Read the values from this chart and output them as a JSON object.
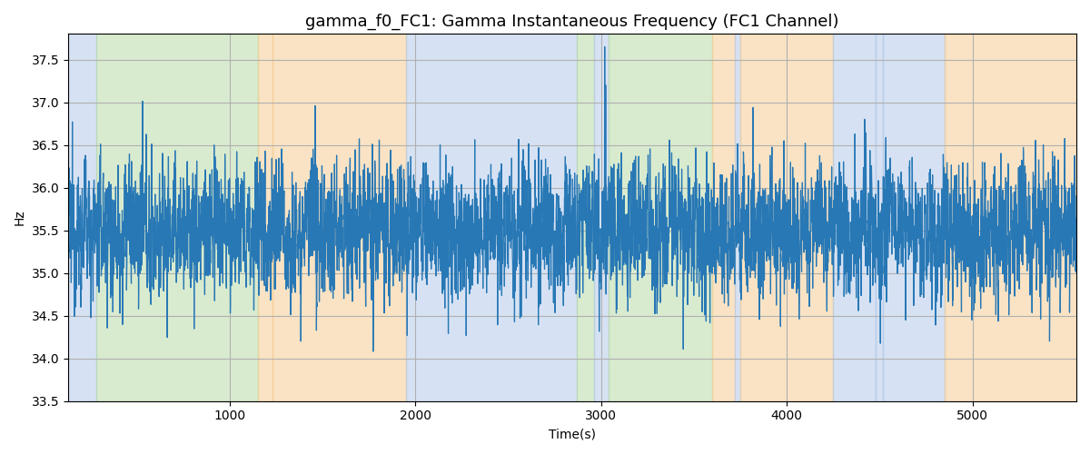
{
  "title": "gamma_f0_FC1: Gamma Instantaneous Frequency (FC1 Channel)",
  "xlabel": "Time(s)",
  "ylabel": "Hz",
  "xlim": [
    130,
    5560
  ],
  "ylim": [
    33.5,
    37.8
  ],
  "yticks": [
    33.5,
    34.0,
    34.5,
    35.0,
    35.5,
    36.0,
    36.5,
    37.0,
    37.5
  ],
  "line_color": "#2878b5",
  "line_width": 0.9,
  "background_color": "#ffffff",
  "grid_color": "#b0b0b0",
  "band_definitions": [
    [
      130,
      280,
      "#aec6e8"
    ],
    [
      280,
      1150,
      "#b5d9a0"
    ],
    [
      1150,
      1230,
      "#f5c98a"
    ],
    [
      1230,
      1950,
      "#f5c98a"
    ],
    [
      1950,
      2870,
      "#aec6e8"
    ],
    [
      2870,
      2960,
      "#b5d9a0"
    ],
    [
      2960,
      3040,
      "#aec6e8"
    ],
    [
      3040,
      3600,
      "#b5d9a0"
    ],
    [
      3600,
      3720,
      "#f5c98a"
    ],
    [
      3720,
      3750,
      "#aec6e8"
    ],
    [
      3750,
      4250,
      "#f5c98a"
    ],
    [
      4250,
      4480,
      "#aec6e8"
    ],
    [
      4480,
      4520,
      "#aec6e8"
    ],
    [
      4520,
      4850,
      "#aec6e8"
    ],
    [
      4850,
      5560,
      "#f5c98a"
    ]
  ],
  "seed": 12345,
  "num_points": 5300,
  "t_start": 130,
  "t_end": 5560,
  "mean_freq": 35.5,
  "noise_std": 0.38,
  "title_fontsize": 13
}
